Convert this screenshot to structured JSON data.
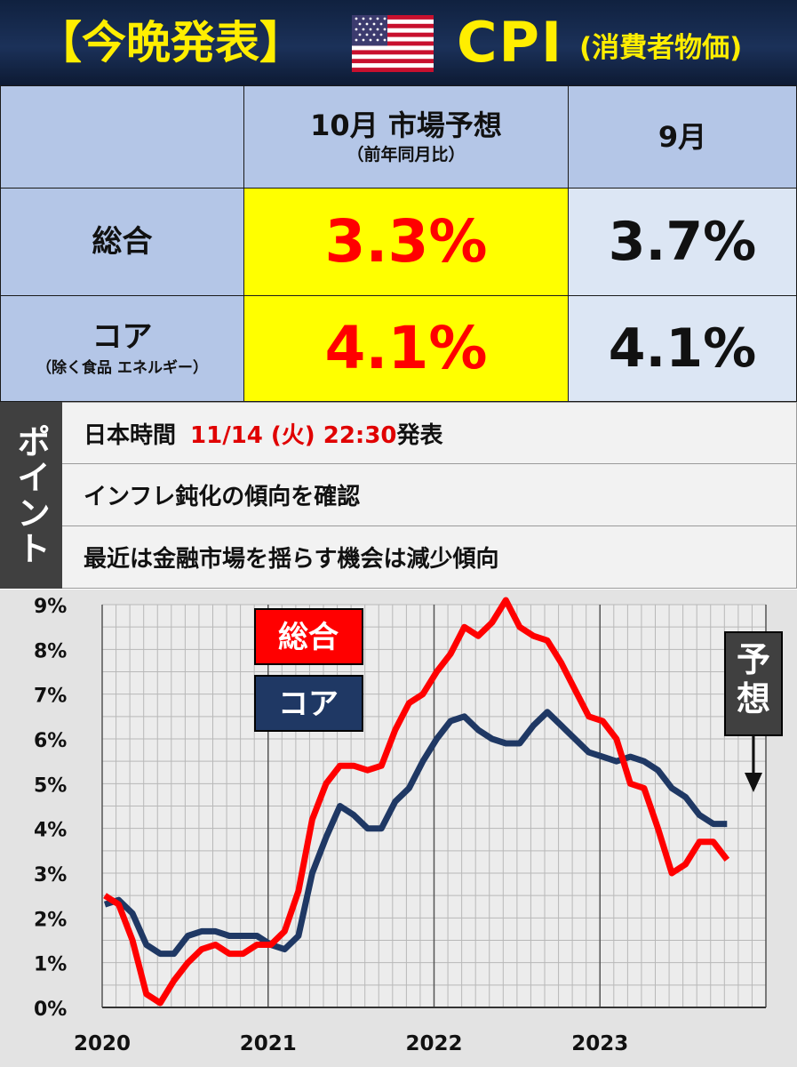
{
  "header": {
    "tag": "【今晩発表】",
    "cpi": "CPI",
    "cpi_sub": "(消費者物価)"
  },
  "colors": {
    "header_text": "#ffee00",
    "forecast_red": "#ff0000",
    "headline_line": "#ff0000",
    "core_line": "#1f3864",
    "yellow_cell": "#ffff00",
    "blue_cell": "#b4c6e7"
  },
  "icons": {
    "flag": "us-flag-icon"
  },
  "table": {
    "forecast_header": "10月 市場予想",
    "forecast_sub": "（前年同月比）",
    "prev_header": "9月",
    "rows": [
      {
        "label": "総合",
        "sub": "",
        "forecast": "3.3%",
        "prev": "3.7%"
      },
      {
        "label": "コア",
        "sub": "（除く食品 エネルギー）",
        "forecast": "4.1%",
        "prev": "4.1%"
      }
    ]
  },
  "points": {
    "side_label": "ポイント",
    "items": [
      {
        "prefix": "日本時間",
        "highlight": "11/14 (火) 22:30",
        "suffix": "発表"
      },
      {
        "text": "インフレ鈍化の傾向を確認"
      },
      {
        "text": "最近は金融市場を揺らす機会は減少傾向"
      }
    ]
  },
  "chart_data": {
    "type": "line",
    "x_labels": [
      "2020",
      "2021",
      "2022",
      "2023"
    ],
    "y_ticks": [
      "0%",
      "1%",
      "2%",
      "3%",
      "4%",
      "5%",
      "6%",
      "7%",
      "8%",
      "9%"
    ],
    "ylim": [
      0,
      9
    ],
    "grid": true,
    "legend": [
      "総合",
      "コア"
    ],
    "legend_placement": "top-left",
    "forecast_label": "予想",
    "series": [
      {
        "name": "総合",
        "color": "#ff0000",
        "values": [
          2.5,
          2.3,
          1.5,
          0.3,
          0.1,
          0.6,
          1.0,
          1.3,
          1.4,
          1.2,
          1.2,
          1.4,
          1.4,
          1.7,
          2.6,
          4.2,
          5.0,
          5.4,
          5.4,
          5.3,
          5.4,
          6.2,
          6.8,
          7.0,
          7.5,
          7.9,
          8.5,
          8.3,
          8.6,
          9.1,
          8.5,
          8.3,
          8.2,
          7.7,
          7.1,
          6.5,
          6.4,
          6.0,
          5.0,
          4.9,
          4.0,
          3.0,
          3.2,
          3.7,
          3.7,
          3.3
        ]
      },
      {
        "name": "コア",
        "color": "#1f3864",
        "values": [
          2.3,
          2.4,
          2.1,
          1.4,
          1.2,
          1.2,
          1.6,
          1.7,
          1.7,
          1.6,
          1.6,
          1.6,
          1.4,
          1.3,
          1.6,
          3.0,
          3.8,
          4.5,
          4.3,
          4.0,
          4.0,
          4.6,
          4.9,
          5.5,
          6.0,
          6.4,
          6.5,
          6.2,
          6.0,
          5.9,
          5.9,
          6.3,
          6.6,
          6.3,
          6.0,
          5.7,
          5.6,
          5.5,
          5.6,
          5.5,
          5.3,
          4.9,
          4.7,
          4.3,
          4.1,
          4.1
        ]
      }
    ]
  }
}
